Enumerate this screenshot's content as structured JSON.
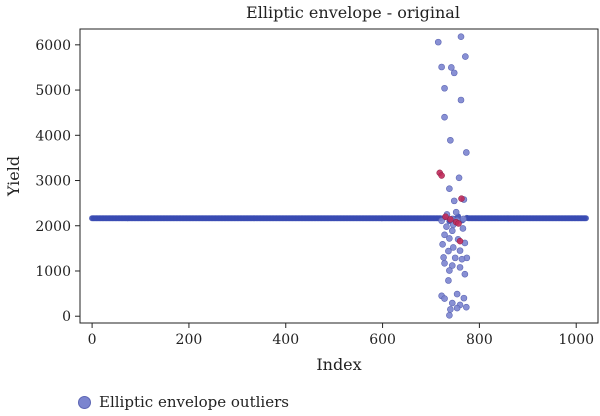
{
  "chart_data": {
    "type": "scatter",
    "title": "Elliptic envelope - original",
    "xlabel": "Index",
    "ylabel": "Yield",
    "xlim": [
      -25,
      1045
    ],
    "ylim": [
      -150,
      6350
    ],
    "xticks": [
      0,
      200,
      400,
      600,
      800,
      1000
    ],
    "yticks": [
      0,
      1000,
      2000,
      3000,
      4000,
      5000,
      6000
    ],
    "grid": false,
    "legend_position": "bottom-left",
    "colors": {
      "inlier": "#3a4bb3",
      "outlier": "#7b84cf",
      "highlight": "#c02a5a"
    },
    "inlier_series": {
      "x_start": 0,
      "x_end": 1020,
      "baseline": 2165,
      "gap": [
        720,
        775
      ]
    },
    "series": [
      {
        "name": "Elliptic envelope outliers",
        "points": [
          [
            715,
            6060
          ],
          [
            762,
            6180
          ],
          [
            722,
            5510
          ],
          [
            742,
            5500
          ],
          [
            771,
            5740
          ],
          [
            748,
            5380
          ],
          [
            728,
            5040
          ],
          [
            762,
            4780
          ],
          [
            728,
            4400
          ],
          [
            740,
            3890
          ],
          [
            773,
            3620
          ],
          [
            758,
            3060
          ],
          [
            738,
            2820
          ],
          [
            748,
            2550
          ],
          [
            768,
            2580
          ],
          [
            733,
            2250
          ],
          [
            752,
            2300
          ],
          [
            744,
            2150
          ],
          [
            767,
            2150
          ],
          [
            722,
            2110
          ],
          [
            732,
            1980
          ],
          [
            754,
            2120
          ],
          [
            746,
            2020
          ],
          [
            766,
            1940
          ],
          [
            744,
            1890
          ],
          [
            728,
            1800
          ],
          [
            738,
            1720
          ],
          [
            756,
            1700
          ],
          [
            770,
            1620
          ],
          [
            724,
            1590
          ],
          [
            746,
            1520
          ],
          [
            760,
            1450
          ],
          [
            736,
            1440
          ],
          [
            726,
            1300
          ],
          [
            750,
            1290
          ],
          [
            774,
            1290
          ],
          [
            764,
            1260
          ],
          [
            728,
            1170
          ],
          [
            744,
            1120
          ],
          [
            760,
            1080
          ],
          [
            738,
            1010
          ],
          [
            770,
            930
          ],
          [
            736,
            790
          ],
          [
            754,
            490
          ],
          [
            722,
            450
          ],
          [
            728,
            390
          ],
          [
            768,
            400
          ],
          [
            744,
            290
          ],
          [
            760,
            250
          ],
          [
            773,
            200
          ],
          [
            754,
            180
          ],
          [
            740,
            150
          ],
          [
            738,
            20
          ]
        ]
      },
      {
        "highlight": true,
        "points": [
          [
            718,
            3170
          ],
          [
            722,
            3110
          ],
          [
            763,
            2600
          ],
          [
            740,
            2140
          ],
          [
            752,
            2080
          ],
          [
            757,
            2050
          ],
          [
            760,
            1660
          ],
          [
            730,
            2200
          ]
        ]
      }
    ]
  },
  "legend": {
    "label": "Elliptic envelope outliers"
  }
}
